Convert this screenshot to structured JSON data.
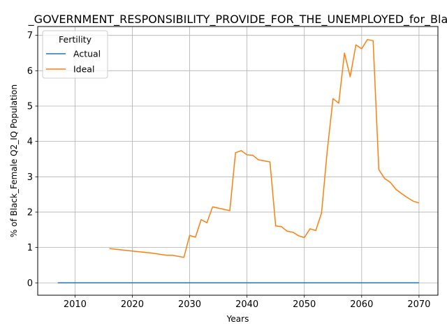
{
  "chart_data": {
    "type": "line",
    "title": "_GOVERNMENT_RESPONSIBILITY_PROVIDE_FOR_THE_UNEMPLOYED_for_Black",
    "xlabel": "Years",
    "ylabel": "% of Black_Female Q2_IQ Population",
    "xlim": [
      2003.5,
      2073.3
    ],
    "ylim": [
      -0.35,
      7.25
    ],
    "xticks": [
      2010,
      2020,
      2030,
      2040,
      2050,
      2060,
      2070
    ],
    "yticks": [
      0,
      1,
      2,
      3,
      4,
      5,
      6,
      7
    ],
    "grid": true,
    "legend": {
      "title": "Fertility",
      "position": "top-left"
    },
    "series": [
      {
        "name": "Actual",
        "color": "#1f77b4",
        "x": [
          2007,
          2070
        ],
        "y": [
          0,
          0
        ]
      },
      {
        "name": "Ideal",
        "color": "#ff7f0e",
        "x": [
          2016,
          2020,
          2023,
          2026,
          2027,
          2029,
          2030,
          2031,
          2032,
          2033,
          2034,
          2037,
          2038,
          2039,
          2040,
          2041,
          2042,
          2043,
          2044,
          2045,
          2046,
          2047,
          2048,
          2049,
          2050,
          2051,
          2052,
          2053,
          2054,
          2055,
          2056,
          2057,
          2058,
          2059,
          2060,
          2061,
          2062,
          2063,
          2064,
          2065,
          2066,
          2067,
          2068,
          2069,
          2070
        ],
        "y": [
          0.97,
          0.9,
          0.85,
          0.78,
          0.78,
          0.72,
          1.34,
          1.29,
          1.79,
          1.7,
          2.15,
          2.04,
          3.68,
          3.74,
          3.62,
          3.61,
          3.48,
          3.45,
          3.42,
          1.61,
          1.59,
          1.46,
          1.43,
          1.33,
          1.28,
          1.53,
          1.48,
          1.98,
          3.75,
          5.21,
          5.08,
          6.5,
          5.83,
          6.73,
          6.62,
          6.88,
          6.85,
          3.2,
          2.95,
          2.84,
          2.64,
          2.52,
          2.41,
          2.31,
          2.26
        ]
      }
    ]
  }
}
